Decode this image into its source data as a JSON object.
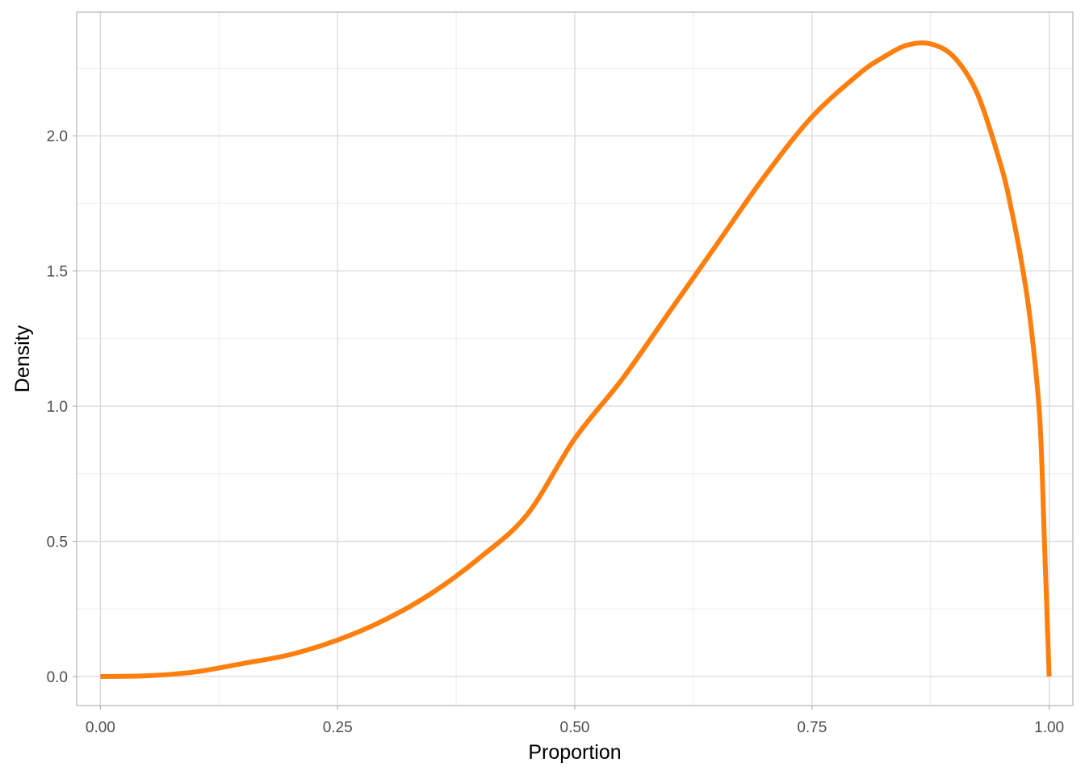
{
  "chart_data": {
    "type": "line",
    "title": "",
    "xlabel": "Proportion",
    "ylabel": "Density",
    "xlim": [
      -0.025,
      1.025
    ],
    "ylim": [
      -0.1075,
      2.4575
    ],
    "x_ticks": [
      0.0,
      0.25,
      0.5,
      0.75,
      1.0
    ],
    "x_tick_labels": [
      "0.00",
      "0.25",
      "0.50",
      "0.75",
      "1.00"
    ],
    "y_ticks": [
      0.0,
      0.5,
      1.0,
      1.5,
      2.0
    ],
    "y_tick_labels": [
      "0.0",
      "0.5",
      "1.0",
      "1.5",
      "2.0"
    ],
    "grid": true,
    "legend": "none",
    "series": [
      {
        "color": "#ff7f0e",
        "x": [
          0.0,
          0.05,
          0.1,
          0.15,
          0.2,
          0.25,
          0.3,
          0.35,
          0.4,
          0.45,
          0.5,
          0.55,
          0.6,
          0.65,
          0.7,
          0.75,
          0.8,
          0.825,
          0.85,
          0.875,
          0.9,
          0.925,
          0.95,
          0.96,
          0.97,
          0.98,
          0.99,
          0.995,
          1.0
        ],
        "y": [
          0.0,
          0.003,
          0.017,
          0.048,
          0.081,
          0.135,
          0.21,
          0.31,
          0.44,
          0.6,
          0.88,
          1.1,
          1.35,
          1.6,
          1.85,
          2.07,
          2.23,
          2.29,
          2.335,
          2.34,
          2.29,
          2.15,
          1.88,
          1.73,
          1.55,
          1.32,
          0.96,
          0.5,
          0.0
        ]
      }
    ]
  }
}
